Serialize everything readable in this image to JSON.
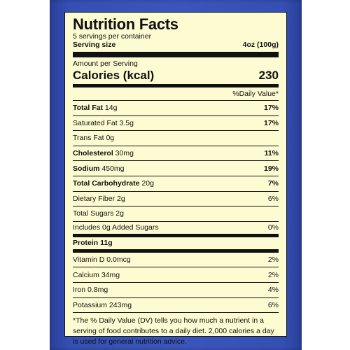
{
  "title": "Nutrition Facts",
  "servings_per_container": "5 servings per container",
  "serving_size_label": "Serving size",
  "serving_size_value": "4oz (100g)",
  "amount_per_serving": "Amount per Serving",
  "calories_label": "Calories (kcal)",
  "calories_value": "230",
  "daily_value_header": "%Daily Value*",
  "rows": [
    {
      "bold": "Total Fat",
      "amount": "14g",
      "pct": "17%",
      "pct_bold": true
    },
    {
      "bold": "",
      "amount": "Saturated Fat 3.5g",
      "pct": "17%",
      "pct_bold": true
    },
    {
      "bold": "",
      "amount": "Trans Fat 0g",
      "pct": "",
      "pct_bold": false
    },
    {
      "bold": "Cholesterol",
      "amount": "30mg",
      "pct": "11%",
      "pct_bold": true
    },
    {
      "bold": "Sodium",
      "amount": "450mg",
      "pct": "19%",
      "pct_bold": true
    },
    {
      "bold": "Total Carbohydrate",
      "amount": "20g",
      "pct": "7%",
      "pct_bold": true
    },
    {
      "bold": "",
      "amount": "Dietary Fiber 2g",
      "pct": "6%",
      "pct_bold": false
    },
    {
      "bold": "",
      "amount": "Total Sugars 2g",
      "pct": "",
      "pct_bold": false
    },
    {
      "bold": "",
      "amount": "Includes 0g Added Sugars",
      "pct": "0%",
      "pct_bold": false
    },
    {
      "bold": "Protein",
      "amount": "11g",
      "pct": "",
      "pct_bold": false,
      "protein": true
    },
    {
      "bold": "",
      "amount": "Vitamin D 0.0mcg",
      "pct": "2%",
      "pct_bold": false
    },
    {
      "bold": "",
      "amount": "Calcium 34mg",
      "pct": "2%",
      "pct_bold": false
    },
    {
      "bold": "",
      "amount": "Iron 0.8mg",
      "pct": "4%",
      "pct_bold": false
    },
    {
      "bold": "",
      "amount": "Potassium 243mg",
      "pct": "6%",
      "pct_bold": false
    }
  ],
  "footnote": "*The % Daily Value (DV) tells you how much a nutrient in a serving of food contributes to a daily diet. 2,000 calories a day is used for general nutrition advice.",
  "colors": {
    "package_blue": "#3a56bc",
    "label_background": "#fdfbd2",
    "ink": "#111111"
  }
}
